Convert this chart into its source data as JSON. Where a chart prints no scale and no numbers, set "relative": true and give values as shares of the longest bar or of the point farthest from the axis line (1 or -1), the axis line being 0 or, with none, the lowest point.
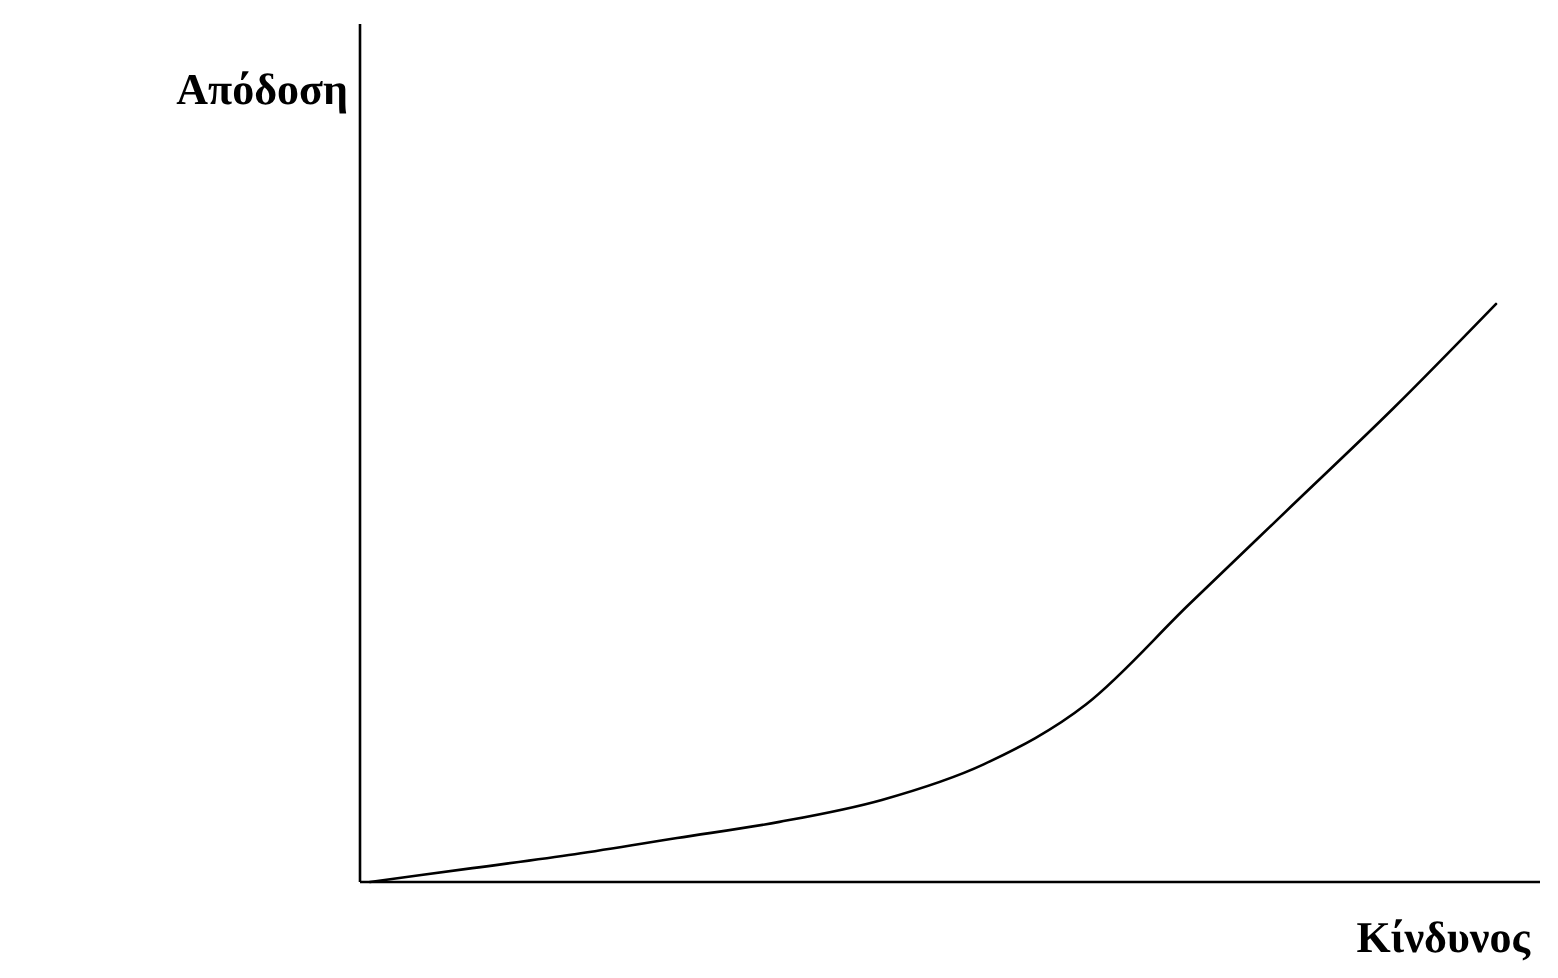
{
  "chart_data": {
    "type": "line",
    "relative": true,
    "xlabel": "Κίνδυνος",
    "ylabel": "Απόδοση",
    "color": "#000000",
    "categories": [
      null,
      null,
      null,
      null,
      null,
      null,
      null,
      null,
      null,
      null,
      null,
      null
    ],
    "values": [
      0,
      0.024,
      0.048,
      0.076,
      0.104,
      0.142,
      0.204,
      0.308,
      0.48,
      0.65,
      0.82,
      1
    ]
  }
}
